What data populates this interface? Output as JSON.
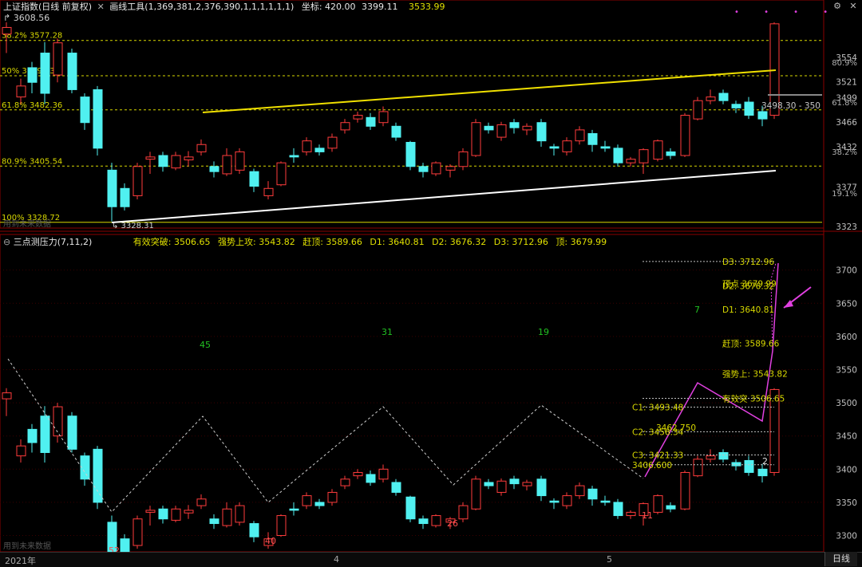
{
  "header": {
    "index_name": "上证指数(日线 前复权)",
    "tool_label": "画线工具(1,369,381,2,376,390,1,1,1,1,1,1)",
    "coord_label": "坐标: 420.00",
    "price_value": "3399.11",
    "price2": "3533.99"
  },
  "upper": {
    "high_label": "3608.56",
    "low_label": "3328.31",
    "fib_levels": [
      {
        "label": "38.2% 3577.28",
        "price": 3577.28
      },
      {
        "label": "50% 3529.03",
        "price": 3529.03
      },
      {
        "label": "61.8% 3482.36",
        "price": 3482.36
      },
      {
        "label": "80.9% 3405.54",
        "price": 3405.54
      },
      {
        "label": "100% 3328.72",
        "price": 3328.72
      }
    ],
    "axis_ticks": [
      "3554",
      "3521",
      "3499",
      "3466",
      "3432",
      "3377",
      "3323"
    ],
    "pct_ticks": [
      "80.9%",
      "61.8%",
      "38.2%",
      "19.1%"
    ],
    "price_tag": "3498.30 - 350",
    "watermark": "用到未来数据"
  },
  "lower": {
    "title": "三点测压力(7,11,2)",
    "stats": [
      {
        "label": "有效突破: 3506.65",
        "color": "#e0e000"
      },
      {
        "label": "强势上攻: 3543.82",
        "color": "#e0e000"
      },
      {
        "label": "赶顶: 3589.66",
        "color": "#e0e000"
      },
      {
        "label": "D1: 3640.81",
        "color": "#e0e000"
      },
      {
        "label": "D2: 3676.32",
        "color": "#e0e000"
      },
      {
        "label": "D3: 3712.96",
        "color": "#e0e000"
      },
      {
        "label": "顶: 3679.99",
        "color": "#e0e000"
      }
    ],
    "axis_ticks": [
      "3700",
      "3650",
      "3600",
      "3550",
      "3500",
      "3450",
      "3400",
      "3350",
      "3300"
    ],
    "labels_right": [
      {
        "text": "D3: 3712.96",
        "price": 3712.96
      },
      {
        "text": "顶点 3679.99",
        "price": 3679.99
      },
      {
        "text": "D2: 3676.32",
        "price": 3676.32
      },
      {
        "text": "D1: 3640.81",
        "price": 3640.81
      },
      {
        "text": "赶顶: 3589.66",
        "price": 3589.66
      },
      {
        "text": "强势上: 3543.82",
        "price": 3543.82
      },
      {
        "text": "有效突 3506.65",
        "price": 3506.65
      }
    ],
    "c_labels": [
      {
        "text": "C1: 3493.48",
        "price": 3493.48
      },
      {
        "text": "3462.750",
        "price": 3462.75
      },
      {
        "text": "C2: 3456.34",
        "price": 3456.34
      },
      {
        "text": "C3: 3421.33",
        "price": 3421.33
      },
      {
        "text": "3406.600",
        "price": 3406.6
      }
    ],
    "counts": [
      "45",
      "31",
      "19",
      "7",
      "52",
      "40",
      "26",
      "11",
      "2"
    ],
    "watermark": "用到未来数据"
  },
  "footer": {
    "year": "2021年",
    "month4": "4",
    "month5": "5",
    "period_button": "日线"
  },
  "colors": {
    "up": "#ff3c3c",
    "down": "#50f0f0",
    "fib": "#d8d800",
    "yellow_line": "#f0e000",
    "white_line": "#ffffff",
    "magenta": "#e040e0"
  }
}
